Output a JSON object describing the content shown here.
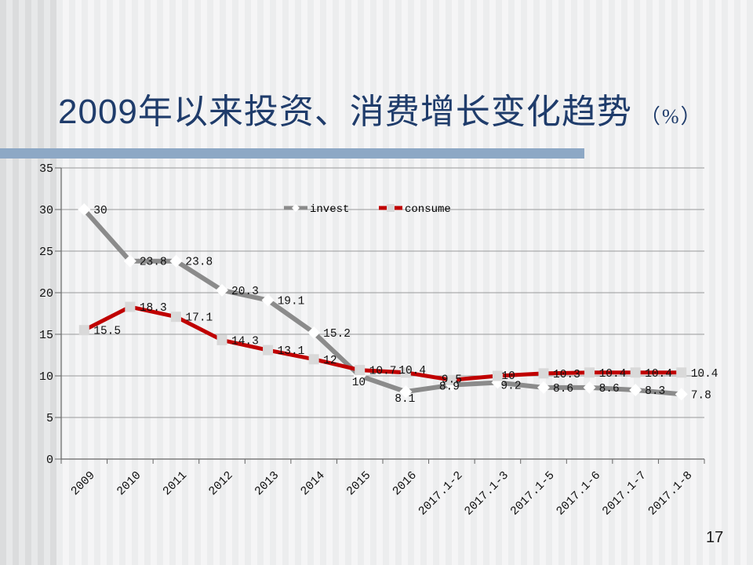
{
  "slide": {
    "title": "2009年以来投资、消费增长变化趋势",
    "title_suffix": "（%）",
    "page_number": "17"
  },
  "colors": {
    "title_text": "#1f3c6b",
    "accent_bar": "#8da8c5",
    "grid": "#999999",
    "axis": "#666666",
    "label_text": "#111111"
  },
  "chart_data": {
    "type": "line",
    "title": "",
    "xlabel": "",
    "ylabel": "",
    "categories": [
      "2009",
      "2010",
      "2011",
      "2012",
      "2013",
      "2014",
      "2015",
      "2016",
      "2017.1-2",
      "2017.1-3",
      "2017.1-5",
      "2017.1-6",
      "2017.1-7",
      "2017.1-8"
    ],
    "series": [
      {
        "name": "invest",
        "color": "#8b8b8b",
        "marker": "diamond",
        "marker_color": "#ffffff",
        "values": [
          30,
          23.8,
          23.8,
          20.3,
          19.1,
          15.2,
          10,
          8.1,
          8.9,
          9.2,
          8.6,
          8.6,
          8.3,
          7.8
        ],
        "label_offsets": {
          "6": [
            -10,
            12
          ],
          "7": [
            -14,
            13
          ],
          "8": [
            -16,
            6
          ],
          "9": [
            4,
            8
          ]
        }
      },
      {
        "name": "consume",
        "color": "#c00000",
        "marker": "square",
        "marker_color": "#d9d9d9",
        "values": [
          15.5,
          18.3,
          17.1,
          14.3,
          13.1,
          12,
          10.7,
          10.4,
          9.5,
          10,
          10.3,
          10.4,
          10.4,
          10.4
        ],
        "label_offsets": {
          "7": [
            -9,
            1
          ],
          "8": [
            -13,
            3
          ],
          "9": [
            5,
            4
          ]
        }
      }
    ],
    "ylim": [
      0,
      35
    ],
    "ytick_step": 5,
    "grid": true,
    "data_labels": true,
    "legend_position": "top-center"
  }
}
